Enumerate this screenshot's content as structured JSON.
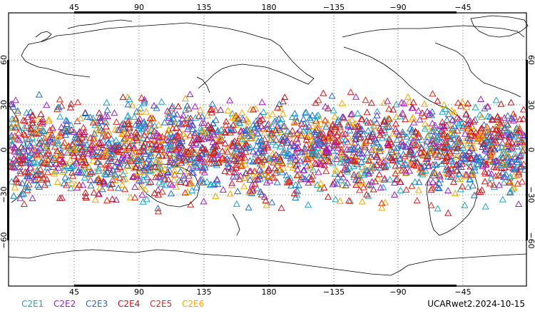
{
  "map": {
    "lon_ticks": [
      "45",
      "90",
      "135",
      "180",
      "−135",
      "−90",
      "−45"
    ],
    "lat_ticks": [
      "60",
      "30",
      "0",
      "−30",
      "−60"
    ],
    "coastline_color": "#000000",
    "grid_style": "dotted",
    "marker_shape": "open-triangle",
    "point_count_note": ""
  },
  "legend": {
    "items": [
      {
        "label": "C2E1",
        "color": "#1aa5c8"
      },
      {
        "label": "C2E2",
        "color": "#9b1fc4"
      },
      {
        "label": "C2E3",
        "color": "#1f6fd0"
      },
      {
        "label": "C2E4",
        "color": "#c8101a"
      },
      {
        "label": "C2E5",
        "color": "#e2261a"
      },
      {
        "label": "C2E6",
        "color": "#f0a800"
      }
    ]
  },
  "product": {
    "label": "UCARwet2.2024-10-15"
  }
}
